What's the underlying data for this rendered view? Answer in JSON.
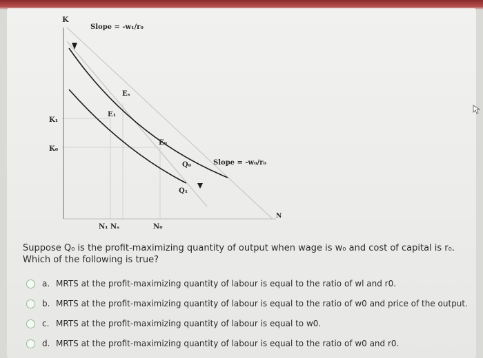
{
  "graph": {
    "axis_k": "K",
    "axis_n": "N",
    "slope_top": "Slope = -w₁/r₀",
    "slope_right": "Slope = -w₀/r₀",
    "k1": "K₁",
    "k0": "K₀",
    "e_s": "Eₛ",
    "e_1": "E₁",
    "e_0": "E₀",
    "q_0": "Q₀",
    "q_1": "Q₁",
    "n1_ns": "N₁ Nₛ",
    "n_0": "N₀"
  },
  "question": {
    "text": "Suppose Q₀ is the profit-maximizing quantity of output when wage is w₀ and cost of capital is r₀. Which of the following is true?"
  },
  "options": [
    {
      "letter": "a.",
      "text": "MRTS at the profit-maximizing quantity of labour is equal to the ratio of wl and r0."
    },
    {
      "letter": "b.",
      "text": "MRTS at the profit-maximizing quantity of labour is equal to the ratio of w0 and price of the output."
    },
    {
      "letter": "c.",
      "text": "MRTS at the profit-maximizing quantity of labour is equal to w0."
    },
    {
      "letter": "d.",
      "text": "MRTS at the profit-maximizing quantity of labour is equal to the ratio of w0 and r0."
    }
  ]
}
